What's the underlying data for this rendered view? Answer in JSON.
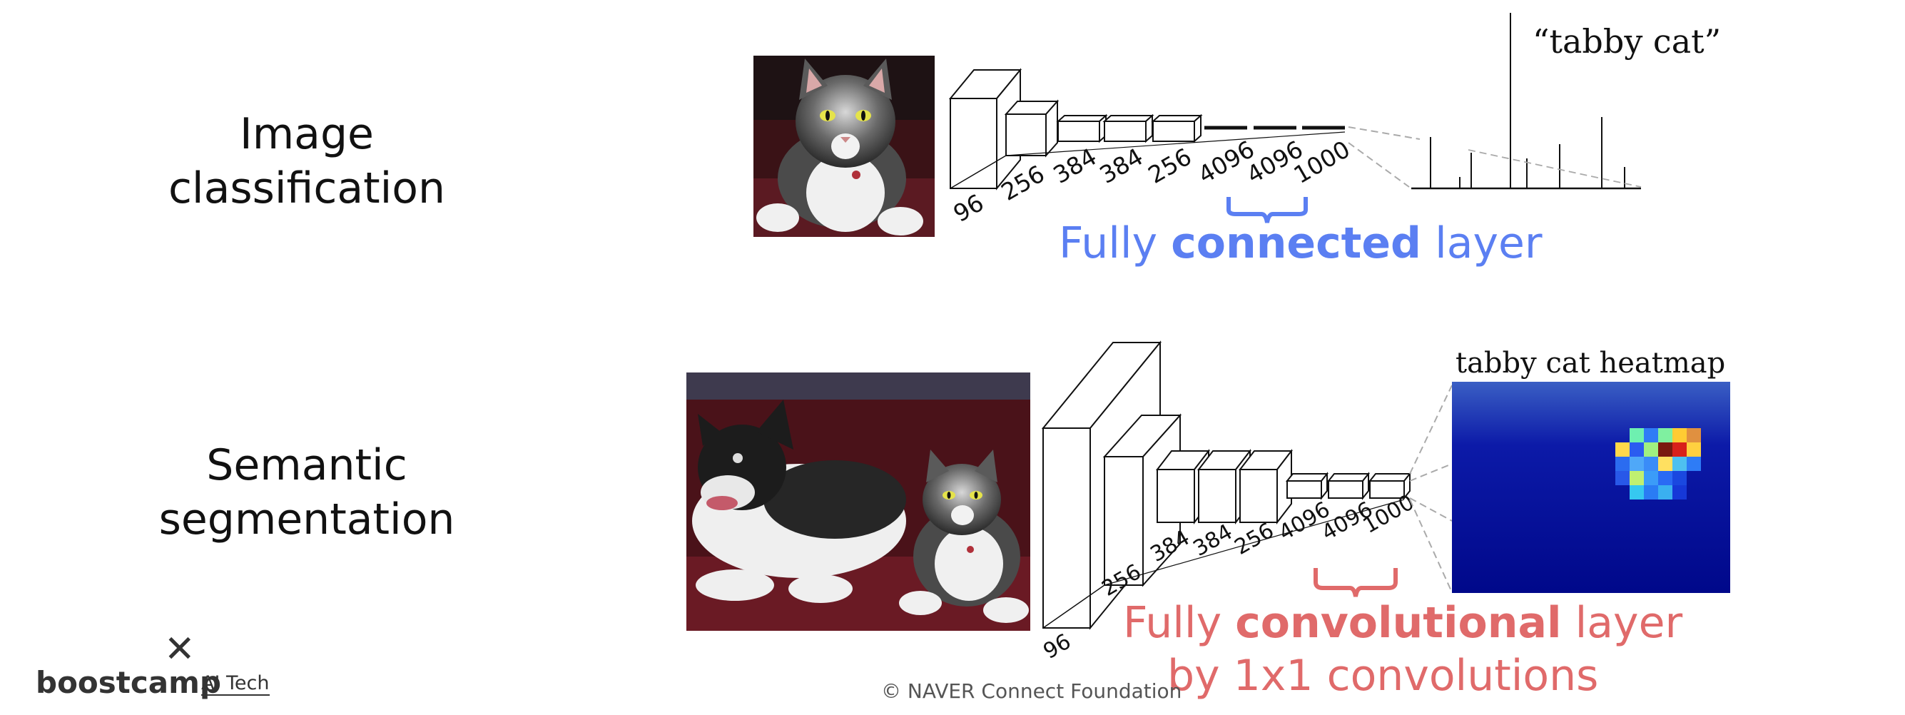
{
  "rows": [
    {
      "label_line1": "Image",
      "label_line2": "classification"
    },
    {
      "label_line1": "Semantic",
      "label_line2": "segmentation"
    }
  ],
  "top_network": {
    "layer_sizes": [
      "96",
      "256",
      "384",
      "384",
      "256",
      "4096",
      "4096",
      "1000"
    ],
    "output_label": "“tabby cat”",
    "caption_prefix": "Fully ",
    "caption_bold": "connected",
    "caption_suffix": " layer",
    "caption_color": "#5b7ff2"
  },
  "bottom_network": {
    "layer_sizes": [
      "96",
      "256",
      "384",
      "384",
      "256",
      "4096",
      "4096",
      "1000"
    ],
    "heatmap_title": "tabby cat heatmap",
    "caption_line1_prefix": "Fully ",
    "caption_line1_bold": "convolutional",
    "caption_line1_suffix": " layer",
    "caption_line2": "by 1x1 convolutions",
    "caption_color": "#e06a6a"
  },
  "footer": {
    "text": "©  NAVER Connect Foundation"
  },
  "logo": {
    "mark": "✕",
    "word": "boostcamp",
    "sub": "AI Tech"
  }
}
